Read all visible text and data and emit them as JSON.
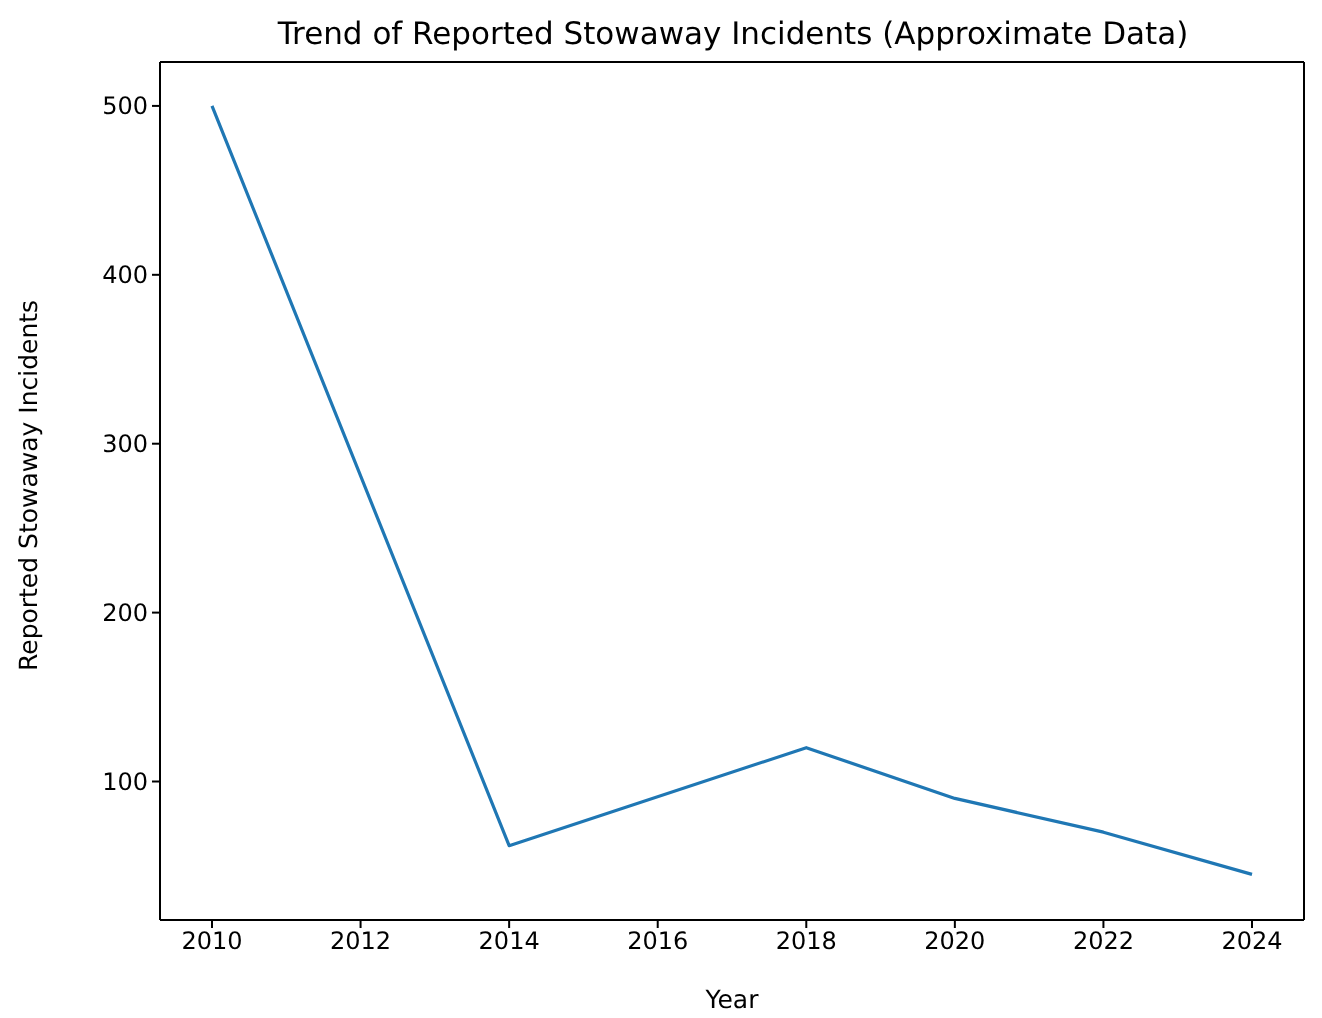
{
  "chart_data": {
    "type": "line",
    "title": "Trend of Reported Stowaway Incidents (Approximate Data)",
    "xlabel": "Year",
    "ylabel": "Reported Stowaway Incidents",
    "x": [
      2010,
      2014,
      2018,
      2020,
      2022,
      2024
    ],
    "series": [
      {
        "color": "#1f77b4",
        "values": [
          500,
          62,
          120,
          90,
          70,
          45
        ]
      }
    ],
    "xlim": [
      2009.3,
      2024.7
    ],
    "xticks": [
      2010,
      2012,
      2014,
      2016,
      2018,
      2020,
      2022,
      2024
    ],
    "ylim": [
      18,
      526
    ],
    "yticks": [
      100,
      200,
      300,
      400,
      500
    ],
    "legend": false,
    "marker": "none",
    "line_style": "solid"
  }
}
